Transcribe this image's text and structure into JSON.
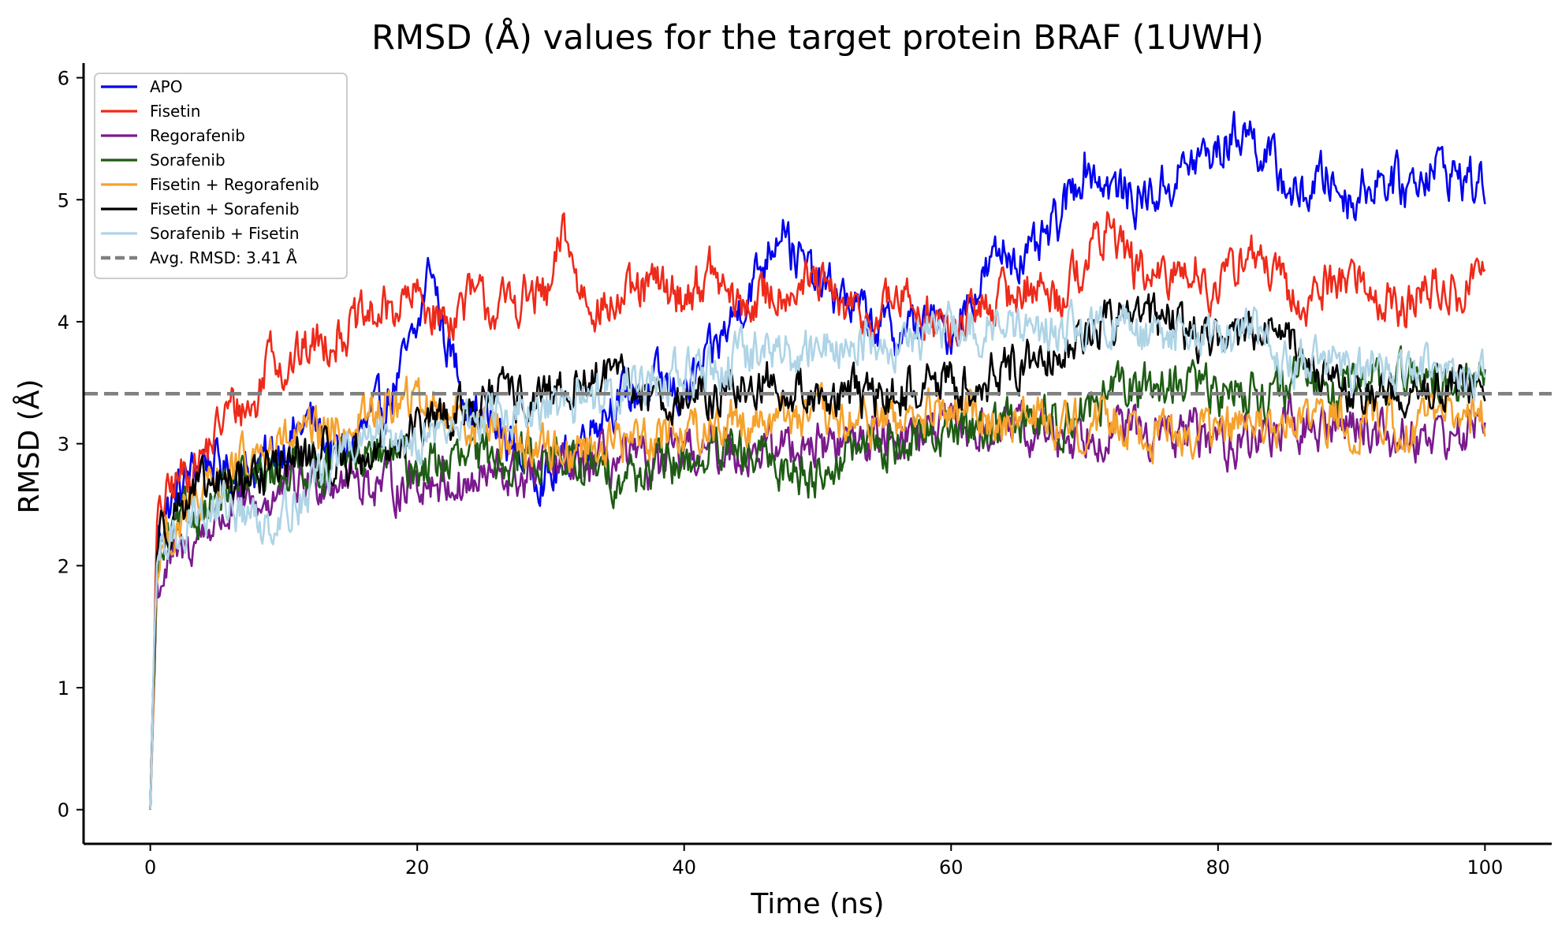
{
  "chart_data": {
    "type": "line",
    "title": "RMSD (Å) values for the target protein BRAF (1UWH)",
    "xlabel": "Time (ns)",
    "ylabel": "RMSD (Å)",
    "xlim": [
      -5,
      105
    ],
    "ylim": [
      -0.28,
      6.12
    ],
    "xticks": [
      0,
      20,
      40,
      60,
      80,
      100
    ],
    "yticks": [
      0,
      1,
      2,
      3,
      4,
      5,
      6
    ],
    "grid": false,
    "legend": "top-left",
    "reference_line": {
      "label": "Avg. RMSD: 3.41 Å",
      "y": 3.41,
      "color": "#808080",
      "style": "dashed"
    },
    "series": [
      {
        "name": "APO",
        "color": "#0000ee",
        "x": [
          0,
          0.5,
          1,
          2,
          3,
          4,
          6,
          8,
          10,
          12,
          14,
          16,
          18,
          20,
          21,
          22,
          24,
          26,
          28,
          30,
          32,
          34,
          36,
          38,
          40,
          42,
          44,
          46,
          47.5,
          48,
          50,
          52,
          54,
          56,
          58,
          60,
          62,
          64,
          66,
          68,
          70,
          72,
          74,
          76,
          78,
          80,
          82,
          84,
          86,
          88,
          90,
          92,
          94,
          96,
          98,
          100
        ],
        "y": [
          0,
          2.2,
          2.4,
          2.6,
          2.75,
          2.9,
          2.75,
          2.8,
          3.0,
          3.2,
          2.9,
          3.1,
          3.4,
          3.9,
          4.5,
          3.9,
          3.3,
          3.1,
          2.9,
          2.7,
          3.0,
          3.3,
          3.4,
          3.5,
          3.4,
          3.7,
          4.1,
          4.5,
          4.9,
          4.6,
          4.3,
          4.2,
          4.0,
          3.9,
          4.0,
          3.9,
          4.3,
          4.6,
          4.5,
          4.8,
          5.3,
          5.1,
          5.0,
          5.1,
          5.3,
          5.4,
          5.6,
          5.3,
          5.0,
          5.2,
          5.0,
          5.2,
          5.1,
          5.3,
          5.2,
          5.1
        ]
      },
      {
        "name": "Fisetin",
        "color": "#ee2a1a",
        "x": [
          0,
          0.5,
          1,
          2,
          4,
          6,
          8,
          9,
          10,
          12,
          14,
          16,
          18,
          20,
          22,
          24,
          26,
          28,
          30,
          31,
          32,
          34,
          36,
          38,
          40,
          42,
          44,
          46,
          48,
          50,
          52,
          54,
          56,
          58,
          60,
          62,
          64,
          66,
          68,
          70,
          72,
          74,
          76,
          78,
          80,
          82,
          84,
          86,
          88,
          90,
          92,
          94,
          96,
          98,
          100
        ],
        "y": [
          0,
          2.3,
          2.5,
          2.7,
          2.9,
          3.3,
          3.3,
          3.9,
          3.6,
          3.8,
          3.9,
          4.0,
          4.1,
          4.2,
          4.0,
          4.2,
          4.1,
          4.2,
          4.2,
          4.8,
          4.3,
          4.1,
          4.2,
          4.3,
          4.2,
          4.4,
          4.1,
          4.2,
          4.3,
          4.3,
          4.1,
          4.0,
          4.2,
          4.1,
          3.9,
          4.1,
          4.2,
          4.3,
          4.2,
          4.5,
          4.8,
          4.4,
          4.3,
          4.5,
          4.2,
          4.6,
          4.4,
          4.1,
          4.3,
          4.4,
          4.2,
          4.1,
          4.3,
          4.2,
          4.5
        ]
      },
      {
        "name": "Regorafenib",
        "color": "#7a1a8c",
        "x": [
          0,
          0.5,
          1,
          2,
          4,
          6,
          8,
          10,
          12,
          14,
          16,
          18,
          20,
          22,
          24,
          26,
          28,
          30,
          32,
          34,
          36,
          38,
          40,
          42,
          44,
          46,
          48,
          50,
          52,
          54,
          56,
          58,
          60,
          62,
          64,
          66,
          68,
          70,
          72,
          74,
          76,
          78,
          80,
          82,
          84,
          86,
          88,
          90,
          92,
          94,
          96,
          98,
          100
        ],
        "y": [
          0,
          1.8,
          1.95,
          2.05,
          2.3,
          2.45,
          2.5,
          2.6,
          2.7,
          2.75,
          2.7,
          2.65,
          2.7,
          2.7,
          2.65,
          2.75,
          2.7,
          2.8,
          2.8,
          2.85,
          2.85,
          2.8,
          2.9,
          2.95,
          2.95,
          2.95,
          3.0,
          3.0,
          3.0,
          3.05,
          3.1,
          3.1,
          3.1,
          3.1,
          3.1,
          3.1,
          3.05,
          3.1,
          3.15,
          3.1,
          3.05,
          3.1,
          3.0,
          3.05,
          3.1,
          3.15,
          3.1,
          3.2,
          3.1,
          3.05,
          3.1,
          3.05,
          3.2
        ]
      },
      {
        "name": "Sorafenib",
        "color": "#1e5c14",
        "x": [
          0,
          0.5,
          1,
          2,
          4,
          6,
          8,
          10,
          12,
          14,
          16,
          18,
          20,
          22,
          24,
          26,
          28,
          30,
          32,
          34,
          36,
          38,
          40,
          42,
          44,
          46,
          48,
          50,
          52,
          54,
          56,
          58,
          60,
          62,
          64,
          66,
          68,
          70,
          72,
          74,
          76,
          78,
          80,
          82,
          84,
          86,
          88,
          90,
          92,
          94,
          96,
          98,
          100
        ],
        "y": [
          0,
          1.9,
          2.1,
          2.3,
          2.5,
          2.6,
          2.7,
          2.8,
          2.85,
          2.8,
          2.9,
          2.9,
          2.8,
          2.85,
          2.85,
          2.9,
          2.9,
          2.9,
          2.8,
          2.75,
          2.75,
          2.8,
          2.85,
          2.9,
          2.9,
          2.85,
          2.8,
          2.75,
          2.9,
          3.0,
          3.0,
          3.05,
          3.1,
          3.15,
          3.2,
          3.2,
          3.2,
          3.3,
          3.4,
          3.45,
          3.5,
          3.5,
          3.4,
          3.45,
          3.4,
          3.5,
          3.5,
          3.45,
          3.5,
          3.55,
          3.5,
          3.5,
          3.55
        ]
      },
      {
        "name": "Fisetin + Regorafenib",
        "color": "#f5a22e",
        "x": [
          0,
          0.5,
          1,
          2,
          4,
          6,
          8,
          10,
          12,
          14,
          16,
          18,
          20,
          22,
          24,
          26,
          28,
          30,
          32,
          34,
          36,
          38,
          40,
          42,
          44,
          46,
          48,
          50,
          52,
          54,
          56,
          58,
          60,
          62,
          64,
          66,
          68,
          70,
          72,
          74,
          76,
          78,
          80,
          82,
          84,
          86,
          88,
          90,
          92,
          94,
          96,
          98,
          100
        ],
        "y": [
          0,
          2.0,
          2.2,
          2.35,
          2.55,
          2.75,
          2.9,
          3.0,
          3.05,
          3.1,
          3.2,
          3.3,
          3.35,
          3.3,
          3.2,
          3.1,
          3.0,
          2.95,
          2.95,
          3.0,
          3.05,
          3.1,
          3.1,
          3.15,
          3.2,
          3.2,
          3.25,
          3.2,
          3.15,
          3.2,
          3.2,
          3.2,
          3.25,
          3.25,
          3.2,
          3.2,
          3.2,
          3.15,
          3.2,
          3.15,
          3.1,
          3.1,
          3.1,
          3.15,
          3.1,
          3.15,
          3.2,
          3.2,
          3.2,
          3.15,
          3.2,
          3.2,
          3.3
        ]
      },
      {
        "name": "Fisetin + Sorafenib",
        "color": "#000000",
        "x": [
          0,
          0.5,
          1,
          2,
          4,
          6,
          8,
          10,
          12,
          14,
          16,
          18,
          20,
          22,
          24,
          26,
          28,
          30,
          32,
          34,
          36,
          38,
          40,
          42,
          44,
          46,
          48,
          50,
          52,
          54,
          56,
          58,
          60,
          62,
          64,
          66,
          68,
          70,
          72,
          74,
          76,
          78,
          80,
          82,
          84,
          86,
          88,
          90,
          92,
          94,
          96,
          98,
          100
        ],
        "y": [
          0,
          2.2,
          2.35,
          2.5,
          2.6,
          2.7,
          2.75,
          2.85,
          2.9,
          2.85,
          2.9,
          3.0,
          3.1,
          3.2,
          3.3,
          3.4,
          3.35,
          3.35,
          3.5,
          3.55,
          3.45,
          3.4,
          3.35,
          3.4,
          3.45,
          3.5,
          3.45,
          3.4,
          3.4,
          3.35,
          3.4,
          3.5,
          3.5,
          3.5,
          3.6,
          3.7,
          3.8,
          3.9,
          4.0,
          4.1,
          4.0,
          3.9,
          3.9,
          3.9,
          3.9,
          3.8,
          3.5,
          3.4,
          3.4,
          3.4,
          3.5,
          3.5,
          3.5
        ]
      },
      {
        "name": "Sorafenib + Fisetin",
        "color": "#aed4e6",
        "x": [
          0,
          0.5,
          1,
          2,
          4,
          6,
          8,
          10,
          12,
          14,
          16,
          18,
          20,
          22,
          24,
          26,
          28,
          30,
          32,
          34,
          36,
          38,
          40,
          42,
          44,
          46,
          48,
          50,
          52,
          54,
          56,
          58,
          60,
          62,
          64,
          66,
          68,
          70,
          72,
          74,
          76,
          78,
          80,
          82,
          84,
          86,
          88,
          90,
          92,
          94,
          96,
          98,
          100
        ],
        "y": [
          0,
          2.0,
          2.15,
          2.3,
          2.45,
          2.5,
          2.35,
          2.45,
          2.65,
          2.9,
          3.0,
          3.05,
          3.05,
          3.1,
          3.2,
          3.25,
          3.2,
          3.25,
          3.35,
          3.45,
          3.5,
          3.55,
          3.55,
          3.6,
          3.7,
          3.75,
          3.75,
          3.8,
          3.8,
          3.85,
          3.85,
          3.9,
          3.95,
          3.95,
          3.95,
          3.9,
          3.95,
          3.95,
          3.95,
          3.9,
          3.85,
          3.9,
          3.85,
          3.9,
          3.8,
          3.7,
          3.65,
          3.55,
          3.6,
          3.6,
          3.55,
          3.5,
          3.55
        ]
      }
    ]
  }
}
